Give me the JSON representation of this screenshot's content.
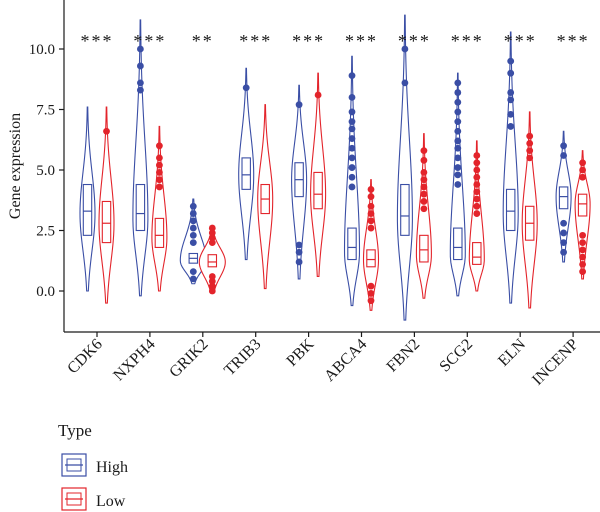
{
  "chart_data": {
    "type": "violin+box",
    "title": "",
    "xlabel": "",
    "ylabel": "Gene expression",
    "ylim": [
      -1.4,
      11.8
    ],
    "yticks": [
      0.0,
      2.5,
      5.0,
      7.5,
      10.0
    ],
    "ytick_labels": [
      "0.0",
      "2.5",
      "5.0",
      "7.5",
      "10.0"
    ],
    "categories": [
      "CDK6",
      "NXPH4",
      "GRIK2",
      "TRIB3",
      "PBK",
      "ABCA4",
      "FBN2",
      "SCG2",
      "ELN",
      "INCENP"
    ],
    "significance": [
      "***",
      "***",
      "**",
      "***",
      "***",
      "***",
      "***",
      "***",
      "***",
      "***"
    ],
    "grid": false,
    "legend": {
      "title": "Type",
      "placement": "bottom-left",
      "entries": [
        "High",
        "Low"
      ]
    },
    "series": [
      {
        "name": "High",
        "color": "#3a4ea5",
        "groups": [
          {
            "min": 0.0,
            "q1": 2.3,
            "median": 3.3,
            "q3": 4.4,
            "max": 7.6,
            "mode": 3.2,
            "outliers": []
          },
          {
            "min": -0.2,
            "q1": 2.5,
            "median": 3.2,
            "q3": 4.4,
            "max": 11.2,
            "mode": 3.0,
            "outliers": [
              8.3,
              8.6,
              9.3,
              10.0
            ]
          },
          {
            "min": 0.3,
            "q1": 1.15,
            "median": 1.35,
            "q3": 1.55,
            "max": 3.8,
            "mode": 1.25,
            "outliers": [
              0.5,
              0.8,
              2.0,
              2.3,
              2.6,
              2.9,
              3.2,
              3.5
            ]
          },
          {
            "min": 1.3,
            "q1": 4.2,
            "median": 4.8,
            "q3": 5.5,
            "max": 9.2,
            "mode": 4.8,
            "outliers": [
              8.4
            ]
          },
          {
            "min": 0.5,
            "q1": 3.9,
            "median": 4.6,
            "q3": 5.3,
            "max": 8.5,
            "mode": 4.6,
            "outliers": [
              1.2,
              1.6,
              1.9,
              7.7
            ]
          },
          {
            "min": -0.6,
            "q1": 1.3,
            "median": 1.8,
            "q3": 2.6,
            "max": 9.7,
            "mode": 1.6,
            "outliers": [
              4.3,
              4.7,
              5.1,
              5.5,
              5.9,
              6.3,
              6.7,
              7.0,
              7.4,
              8.0,
              8.9
            ]
          },
          {
            "min": -1.2,
            "q1": 2.3,
            "median": 3.1,
            "q3": 4.4,
            "max": 11.4,
            "mode": 3.0,
            "outliers": [
              8.6,
              10.0
            ]
          },
          {
            "min": -0.2,
            "q1": 1.3,
            "median": 1.8,
            "q3": 2.6,
            "max": 9.0,
            "mode": 1.5,
            "outliers": [
              4.4,
              4.8,
              5.1,
              5.5,
              5.9,
              6.2,
              6.6,
              7.0,
              7.4,
              7.8,
              8.2,
              8.6
            ]
          },
          {
            "min": -0.5,
            "q1": 2.5,
            "median": 3.3,
            "q3": 4.2,
            "max": 10.7,
            "mode": 3.2,
            "outliers": [
              6.8,
              7.3,
              7.9,
              8.2,
              9.0,
              9.5
            ]
          },
          {
            "min": 1.2,
            "q1": 3.4,
            "median": 3.9,
            "q3": 4.3,
            "max": 6.6,
            "mode": 3.9,
            "outliers": [
              1.6,
              2.0,
              2.4,
              2.8,
              5.6,
              6.0
            ]
          }
        ]
      },
      {
        "name": "Low",
        "color": "#e3242b",
        "groups": [
          {
            "min": -0.5,
            "q1": 2.0,
            "median": 2.8,
            "q3": 3.7,
            "max": 7.6,
            "mode": 2.8,
            "outliers": [
              6.6
            ]
          },
          {
            "min": 0.0,
            "q1": 1.8,
            "median": 2.3,
            "q3": 3.0,
            "max": 6.8,
            "mode": 2.2,
            "outliers": [
              4.3,
              4.6,
              4.9,
              5.2,
              5.5,
              6.0
            ]
          },
          {
            "min": -0.1,
            "q1": 1.0,
            "median": 1.2,
            "q3": 1.5,
            "max": 2.7,
            "mode": 1.2,
            "outliers": [
              0.0,
              0.2,
              0.4,
              0.6,
              2.0,
              2.2,
              2.4,
              2.6
            ]
          },
          {
            "min": 0.1,
            "q1": 3.2,
            "median": 3.8,
            "q3": 4.4,
            "max": 7.7,
            "mode": 3.8,
            "outliers": []
          },
          {
            "min": 0.6,
            "q1": 3.4,
            "median": 4.0,
            "q3": 4.9,
            "max": 9.0,
            "mode": 4.0,
            "outliers": [
              8.1
            ]
          },
          {
            "min": -0.8,
            "q1": 1.0,
            "median": 1.3,
            "q3": 1.7,
            "max": 4.6,
            "mode": 1.3,
            "outliers": [
              -0.4,
              -0.1,
              0.2,
              2.6,
              2.9,
              3.2,
              3.5,
              3.9,
              4.2
            ]
          },
          {
            "min": -0.3,
            "q1": 1.2,
            "median": 1.7,
            "q3": 2.3,
            "max": 6.5,
            "mode": 1.5,
            "outliers": [
              3.4,
              3.7,
              4.0,
              4.3,
              4.6,
              4.9,
              5.4,
              5.8
            ]
          },
          {
            "min": 0.0,
            "q1": 1.1,
            "median": 1.4,
            "q3": 2.0,
            "max": 6.2,
            "mode": 1.3,
            "outliers": [
              3.2,
              3.5,
              3.8,
              4.1,
              4.4,
              4.7,
              5.0,
              5.3,
              5.6
            ]
          },
          {
            "min": -0.7,
            "q1": 2.1,
            "median": 2.8,
            "q3": 3.5,
            "max": 7.4,
            "mode": 2.8,
            "outliers": [
              5.5,
              5.8,
              6.1,
              6.4
            ]
          },
          {
            "min": 0.5,
            "q1": 3.1,
            "median": 3.6,
            "q3": 4.0,
            "max": 5.8,
            "mode": 3.6,
            "outliers": [
              0.8,
              1.1,
              1.4,
              1.7,
              2.0,
              2.3,
              4.7,
              5.0,
              5.3
            ]
          }
        ]
      }
    ]
  }
}
